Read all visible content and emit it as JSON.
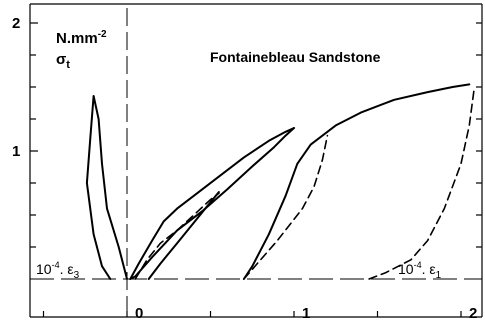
{
  "chart_data": {
    "type": "line",
    "title": "Fontainebleau Sandstone",
    "ylabel_unit": "N.mm",
    "ylabel_unit_exp": "-2",
    "ylabel_symbol": "σ",
    "ylabel_symbol_sub": "t",
    "xlabel_right": "10",
    "xlabel_right_exp": "-4",
    "xlabel_right_symbol": ". ε",
    "xlabel_right_sub": "1",
    "xlabel_left": "10",
    "xlabel_left_exp": "-4",
    "xlabel_left_symbol": ". ε",
    "xlabel_left_sub": "3",
    "x_tick_labels": [
      "0",
      "1",
      "2"
    ],
    "x_tick_values": [
      0,
      1,
      2
    ],
    "y_tick_labels": [
      "2",
      "1"
    ],
    "y_tick_values": [
      2,
      1
    ],
    "xlim": [
      -1.0,
      2.3
    ],
    "ylim": [
      -0.25,
      2.05
    ],
    "grid": false,
    "series": [
      {
        "style": "solid",
        "points": [
          [
            0.02,
            0
          ],
          [
            0.07,
            0.12
          ],
          [
            0.15,
            0.3
          ],
          [
            0.22,
            0.45
          ],
          [
            0.3,
            0.55
          ],
          [
            0.4,
            0.65
          ],
          [
            0.55,
            0.8
          ],
          [
            0.7,
            0.95
          ],
          [
            0.85,
            1.08
          ],
          [
            0.95,
            1.15
          ],
          [
            1.0,
            1.18
          ]
        ]
      },
      {
        "style": "solid",
        "points": [
          [
            0.02,
            0
          ],
          [
            0.05,
            0.02
          ],
          [
            0.15,
            0.17
          ],
          [
            0.3,
            0.38
          ],
          [
            0.45,
            0.53
          ],
          [
            0.6,
            0.7
          ],
          [
            0.75,
            0.88
          ],
          [
            0.88,
            1.03
          ],
          [
            0.95,
            1.12
          ],
          [
            1.0,
            1.18
          ]
        ]
      },
      {
        "style": "solid",
        "points": [
          [
            0.13,
            0
          ],
          [
            0.2,
            0.12
          ],
          [
            0.3,
            0.28
          ],
          [
            0.45,
            0.52
          ],
          [
            0.55,
            0.68
          ]
        ]
      },
      {
        "style": "solid",
        "points": [
          [
            0.7,
            0
          ],
          [
            0.75,
            0.1
          ],
          [
            0.85,
            0.35
          ],
          [
            0.95,
            0.65
          ],
          [
            1.02,
            0.9
          ],
          [
            1.1,
            1.05
          ],
          [
            1.25,
            1.2
          ],
          [
            1.4,
            1.3
          ],
          [
            1.6,
            1.4
          ],
          [
            1.8,
            1.46
          ],
          [
            1.95,
            1.5
          ],
          [
            2.05,
            1.52
          ]
        ]
      },
      {
        "style": "dashed",
        "points": [
          [
            0.05,
            0
          ],
          [
            0.12,
            0.15
          ],
          [
            0.2,
            0.28
          ],
          [
            0.3,
            0.38
          ],
          [
            0.4,
            0.5
          ],
          [
            0.5,
            0.62
          ],
          [
            0.55,
            0.67
          ]
        ]
      },
      {
        "style": "dashed",
        "points": [
          [
            0.7,
            0
          ],
          [
            0.8,
            0.15
          ],
          [
            0.9,
            0.3
          ],
          [
            1.05,
            0.55
          ],
          [
            1.12,
            0.72
          ],
          [
            1.17,
            0.93
          ],
          [
            1.2,
            1.12
          ]
        ]
      },
      {
        "style": "dashed",
        "points": [
          [
            1.45,
            0
          ],
          [
            1.55,
            0.05
          ],
          [
            1.7,
            0.15
          ],
          [
            1.8,
            0.3
          ],
          [
            1.9,
            0.55
          ],
          [
            2.0,
            0.9
          ],
          [
            2.05,
            1.2
          ],
          [
            2.08,
            1.5
          ]
        ]
      },
      {
        "style": "solid",
        "points": [
          [
            0.0,
            0.0
          ],
          [
            -0.05,
            0.25
          ],
          [
            -0.12,
            0.55
          ],
          [
            -0.15,
            0.9
          ],
          [
            -0.17,
            1.25
          ],
          [
            -0.2,
            1.43
          ],
          [
            -0.22,
            1.1
          ],
          [
            -0.24,
            0.75
          ],
          [
            -0.2,
            0.35
          ],
          [
            -0.15,
            0.1
          ],
          [
            -0.1,
            0.0
          ]
        ]
      }
    ]
  }
}
